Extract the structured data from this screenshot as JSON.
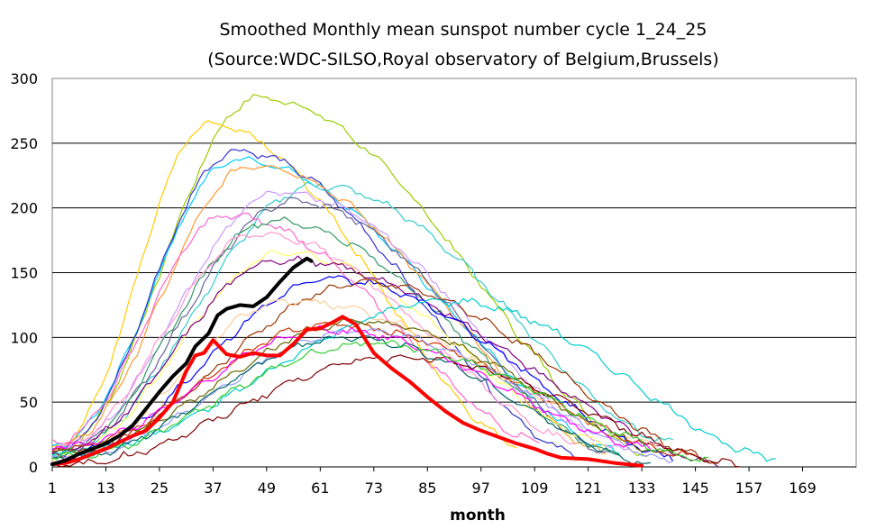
{
  "chart_data": {
    "type": "line",
    "title": "Smoothed Monthly mean sunspot number cycle 1_24_25",
    "subtitle": "(Source:WDC-SILSO,Royal observatory of Belgium,Brussels)",
    "xlabel": "month",
    "ylabel": "",
    "ylim": [
      0,
      300
    ],
    "xlim": [
      1,
      181
    ],
    "xticks": [
      1,
      13,
      25,
      37,
      49,
      61,
      73,
      85,
      97,
      109,
      121,
      133,
      145,
      157,
      169
    ],
    "yticks": [
      0,
      50,
      100,
      150,
      200,
      250,
      300
    ],
    "grid": "horizontal",
    "legend": "none",
    "colors": {
      "cycle25": "#000000",
      "cycle24": "#ff0000",
      "plot_border": "#808080",
      "grid": "#000000"
    },
    "highlight_series": [
      {
        "color": "#000000",
        "x": [
          1,
          4,
          7,
          10,
          13,
          16,
          19,
          22,
          25,
          28,
          31,
          33,
          36,
          38,
          40,
          43,
          46,
          49,
          52,
          55,
          58,
          59
        ],
        "values": [
          2,
          5,
          10,
          14,
          18,
          24,
          32,
          45,
          58,
          70,
          80,
          93,
          103,
          117,
          122,
          125,
          124,
          131,
          143,
          154,
          161,
          159
        ]
      },
      {
        "color": "#ff0000",
        "x": [
          1,
          4,
          7,
          10,
          13,
          16,
          19,
          22,
          25,
          28,
          31,
          33,
          35,
          37,
          40,
          43,
          46,
          49,
          52,
          55,
          58,
          61,
          64,
          66,
          69,
          73,
          77,
          81,
          85,
          89,
          93,
          97,
          101,
          105,
          109,
          112,
          115,
          121,
          127,
          133
        ],
        "values": [
          2,
          3,
          6,
          10,
          14,
          19,
          24,
          28,
          38,
          50,
          74,
          86,
          88,
          98,
          87,
          85,
          88,
          86,
          86,
          95,
          106,
          107,
          112,
          116,
          110,
          88,
          76,
          66,
          54,
          43,
          34,
          28,
          23,
          18,
          14,
          10,
          7,
          6,
          3,
          1
        ]
      }
    ],
    "background_series": [
      {
        "color": "#99cc00",
        "peak_x": 47,
        "peak": 285,
        "start": 12,
        "end_x": 135,
        "end": 10
      },
      {
        "color": "#ffcc00",
        "peak_x": 36,
        "peak": 264,
        "start": 15,
        "end_x": 105,
        "end": 18
      },
      {
        "color": "#00ccff",
        "peak_x": 42,
        "peak": 237,
        "start": 17,
        "end_x": 128,
        "end": 12
      },
      {
        "color": "#3333cc",
        "peak_x": 42,
        "peak": 244,
        "start": 12,
        "end_x": 118,
        "end": 10
      },
      {
        "color": "#ff9933",
        "peak_x": 46,
        "peak": 233,
        "start": 14,
        "end_x": 125,
        "end": 12
      },
      {
        "color": "#33cccc",
        "peak_x": 60,
        "peak": 217,
        "start": 10,
        "end_x": 140,
        "end": 18
      },
      {
        "color": "#cc99ff",
        "peak_x": 52,
        "peak": 212,
        "start": 13,
        "end_x": 130,
        "end": 12
      },
      {
        "color": "#666699",
        "peak_x": 55,
        "peak": 205,
        "start": 11,
        "end_x": 126,
        "end": 10
      },
      {
        "color": "#ff66cc",
        "peak_x": 40,
        "peak": 194,
        "start": 20,
        "end_x": 110,
        "end": 20
      },
      {
        "color": "#339966",
        "peak_x": 50,
        "peak": 190,
        "start": 9,
        "end_x": 128,
        "end": 10
      },
      {
        "color": "#ff99cc",
        "peak_x": 47,
        "peak": 180,
        "start": 15,
        "end_x": 118,
        "end": 20
      },
      {
        "color": "#ffff66",
        "peak_x": 53,
        "peak": 165,
        "start": 8,
        "end_x": 125,
        "end": 18
      },
      {
        "color": "#800080",
        "peak_x": 52,
        "peak": 160,
        "start": 12,
        "end_x": 150,
        "end": 3
      },
      {
        "color": "#0000ff",
        "peak_x": 64,
        "peak": 145,
        "start": 8,
        "end_x": 140,
        "end": 8
      },
      {
        "color": "#993300",
        "peak_x": 71,
        "peak": 142,
        "start": 9,
        "end_x": 150,
        "end": 5
      },
      {
        "color": "#cc3300",
        "peak_x": 63,
        "peak": 110,
        "start": 14,
        "end_x": 145,
        "end": 8
      },
      {
        "color": "#ffcc99",
        "peak_x": 54,
        "peak": 128,
        "start": 6,
        "end_x": 138,
        "end": 18
      },
      {
        "color": "#00cccc",
        "peak_x": 90,
        "peak": 128,
        "start": 10,
        "end_x": 163,
        "end": 6
      },
      {
        "color": "#666600",
        "peak_x": 70,
        "peak": 112,
        "start": 12,
        "end_x": 140,
        "end": 10
      },
      {
        "color": "#9999ff",
        "peak_x": 70,
        "peak": 105,
        "start": 7,
        "end_x": 140,
        "end": 5
      },
      {
        "color": "#006666",
        "peak_x": 67,
        "peak": 100,
        "start": 6,
        "end_x": 135,
        "end": 3
      },
      {
        "color": "#800000",
        "peak_x": 78,
        "peak": 85,
        "start": 1,
        "end_x": 155,
        "end": 2
      },
      {
        "color": "#ff00ff",
        "peak_x": 63,
        "peak": 106,
        "start": 16,
        "end_x": 135,
        "end": 15
      },
      {
        "color": "#33cc33",
        "peak_x": 72,
        "peak": 95,
        "start": 8,
        "end_x": 148,
        "end": 5
      }
    ]
  }
}
